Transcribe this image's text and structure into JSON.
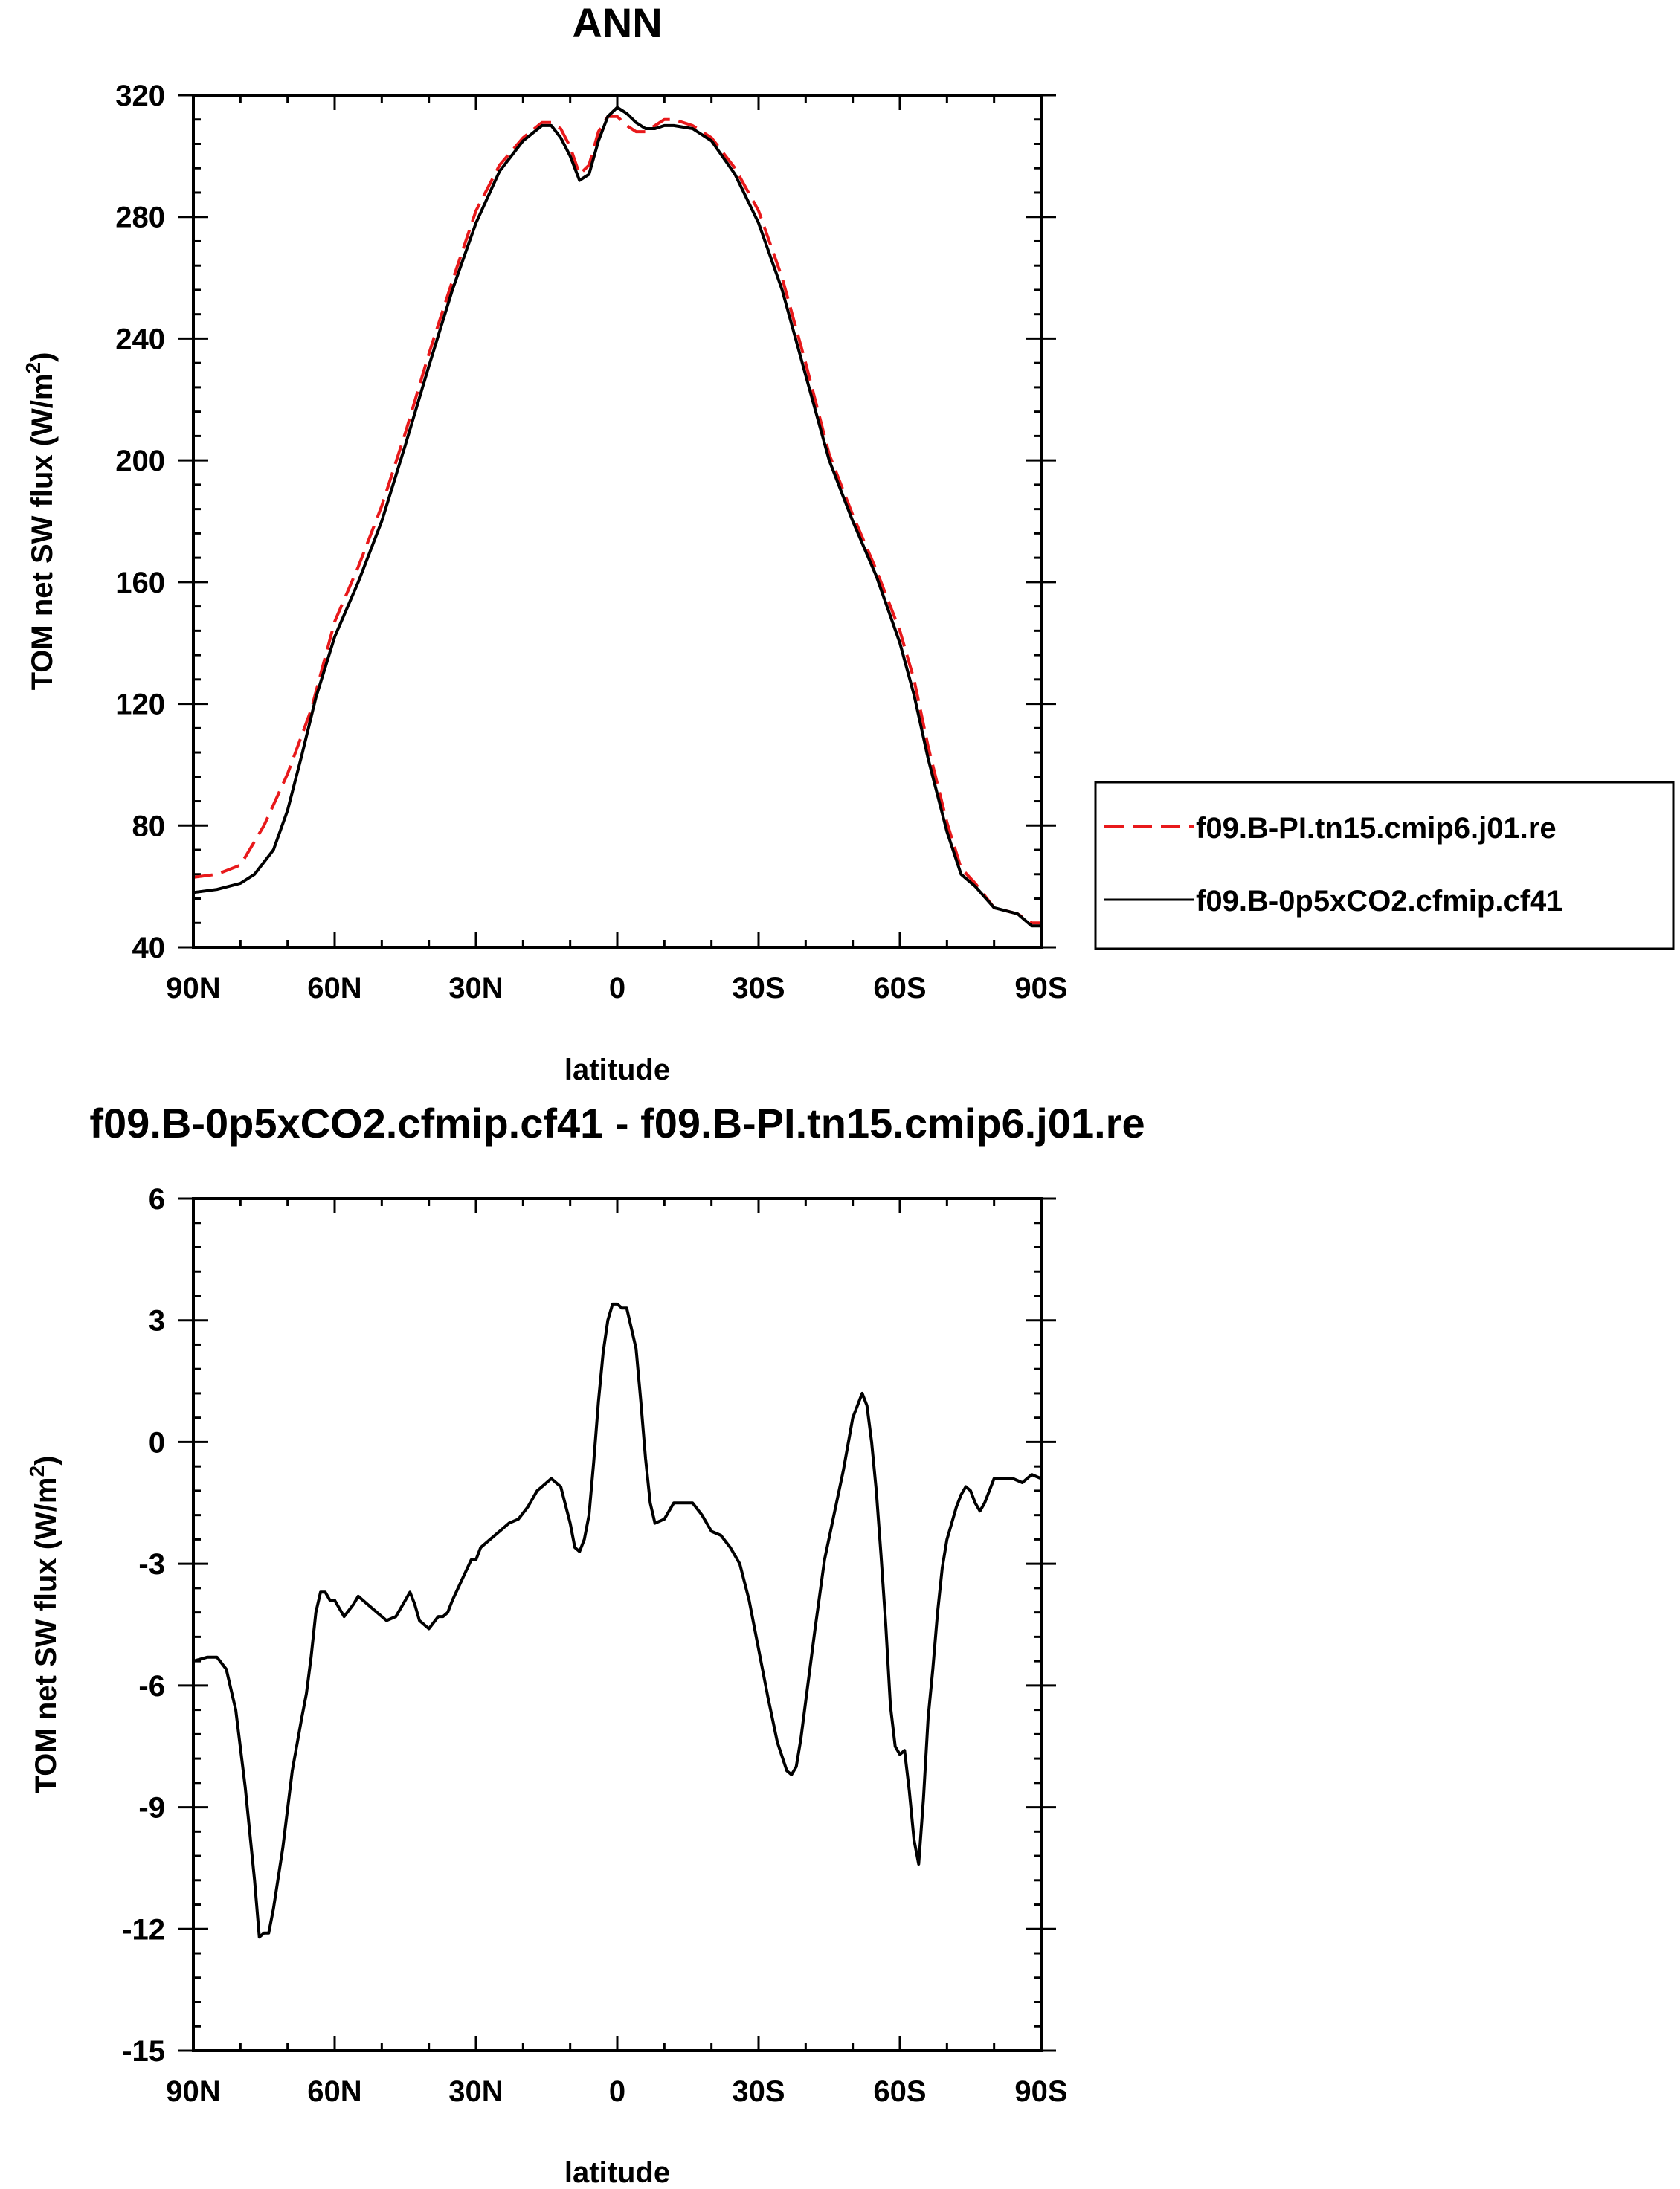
{
  "chart_data": [
    {
      "type": "line",
      "title": "ANN",
      "xlabel": "latitude",
      "ylabel": "TOM net SW flux (W/m",
      "ylabel_sup": "2",
      "ylabel_close": ")",
      "xlim": [
        90,
        -90
      ],
      "ylim": [
        40,
        320
      ],
      "xticks": [
        90,
        60,
        30,
        0,
        -30,
        -60,
        -90
      ],
      "xtick_labels": [
        "90N",
        "60N",
        "30N",
        "0",
        "30S",
        "60S",
        "90S"
      ],
      "yticks": [
        40,
        80,
        120,
        160,
        200,
        240,
        280,
        320
      ],
      "ytick_labels": [
        "40",
        "80",
        "120",
        "160",
        "200",
        "240",
        "280",
        "320"
      ],
      "grid": false,
      "legend_position": "right",
      "series": [
        {
          "name": "f09.B-PI.tn15.cmip6.j01.re",
          "color": "#e8191b",
          "dash": "dashed",
          "x": [
            90,
            85,
            80,
            75,
            70,
            65,
            60,
            55,
            50,
            45,
            40,
            35,
            30,
            25,
            20,
            16,
            14,
            12,
            10,
            8,
            6,
            4,
            2,
            0,
            -2,
            -4,
            -6,
            -8,
            -10,
            -12,
            -16,
            -20,
            -25,
            -30,
            -35,
            -40,
            -45,
            -50,
            -55,
            -60,
            -63,
            -66,
            -70,
            -73,
            -76,
            -80,
            -85,
            -88,
            -90
          ],
          "y": [
            63,
            64,
            67,
            80,
            97,
            118,
            147,
            165,
            185,
            209,
            235,
            259,
            282,
            297,
            306,
            311,
            311,
            309,
            303,
            294,
            297,
            308,
            313,
            313,
            310,
            308,
            308,
            310,
            312,
            312,
            310,
            306,
            296,
            282,
            260,
            232,
            202,
            182,
            164,
            144,
            128,
            106,
            81,
            66,
            61,
            53,
            51,
            48,
            48
          ]
        },
        {
          "name": "f09.B-0p5xCO2.cfmip.cf41",
          "color": "#000000",
          "dash": "solid",
          "x": [
            90,
            85,
            80,
            77,
            73,
            70,
            67,
            64,
            60,
            55,
            50,
            45,
            40,
            35,
            30,
            25,
            20,
            16,
            14,
            12,
            10,
            8,
            6,
            4,
            2,
            0,
            -2,
            -4,
            -6,
            -8,
            -10,
            -12,
            -16,
            -20,
            -25,
            -30,
            -35,
            -40,
            -45,
            -50,
            -55,
            -60,
            -63,
            -66,
            -70,
            -73,
            -76,
            -80,
            -85,
            -88,
            -90
          ],
          "y": [
            58,
            59,
            61,
            64,
            72,
            85,
            103,
            122,
            142,
            160,
            180,
            205,
            231,
            256,
            278,
            295,
            305,
            310,
            310,
            306,
            300,
            292,
            294,
            305,
            313,
            316,
            314,
            311,
            309,
            309,
            310,
            310,
            309,
            305,
            294,
            278,
            256,
            228,
            200,
            180,
            162,
            140,
            123,
            102,
            78,
            64,
            60,
            53,
            51,
            47,
            47
          ]
        }
      ]
    },
    {
      "type": "line",
      "title": "f09.B-0p5xCO2.cfmip.cf41 - f09.B-PI.tn15.cmip6.j01.re",
      "xlabel": "latitude",
      "ylabel": "TOM net SW flux (W/m",
      "ylabel_sup": "2",
      "ylabel_close": ")",
      "xlim": [
        90,
        -90
      ],
      "ylim": [
        -15,
        6
      ],
      "xticks": [
        90,
        60,
        30,
        0,
        -30,
        -60,
        -90
      ],
      "xtick_labels": [
        "90N",
        "60N",
        "30N",
        "0",
        "30S",
        "60S",
        "90S"
      ],
      "yticks": [
        -15,
        -12,
        -9,
        -6,
        -3,
        0,
        3,
        6
      ],
      "ytick_labels": [
        "-15",
        "-12",
        "-9",
        "-6",
        "-3",
        "0",
        "3",
        "6"
      ],
      "grid": false,
      "series": [
        {
          "color": "#000000",
          "dash": "solid",
          "x": [
            90,
            87,
            85,
            83,
            81,
            79,
            77,
            76,
            75,
            74,
            73,
            71,
            69,
            67,
            66,
            65,
            64,
            63,
            62,
            61,
            60,
            58,
            56,
            55,
            53,
            51,
            49,
            47,
            45,
            44,
            43,
            42,
            40,
            38,
            37,
            36,
            35,
            33,
            31,
            30,
            29,
            27,
            25,
            23,
            21,
            19,
            17,
            16,
            14,
            12,
            10,
            9,
            8,
            7,
            6,
            5,
            4,
            3,
            2,
            1,
            0,
            -1,
            -2,
            -3,
            -4,
            -5,
            -6,
            -7,
            -8,
            -10,
            -12,
            -14,
            -16,
            -18,
            -20,
            -22,
            -24,
            -26,
            -28,
            -30,
            -32,
            -34,
            -36,
            -37,
            -38,
            -39,
            -40,
            -42,
            -44,
            -46,
            -48,
            -50,
            -52,
            -53,
            -54,
            -55,
            -56,
            -57,
            -58,
            -59,
            -60,
            -61,
            -62,
            -63,
            -64,
            -65,
            -66,
            -67,
            -68,
            -69,
            -70,
            -71,
            -72,
            -73,
            -74,
            -75,
            -76,
            -77,
            -78,
            -80,
            -82,
            -84,
            -86,
            -88,
            -90
          ],
          "y": [
            -5.4,
            -5.3,
            -5.3,
            -5.6,
            -6.6,
            -8.5,
            -10.8,
            -12.2,
            -12.1,
            -12.1,
            -11.5,
            -10.0,
            -8.1,
            -6.8,
            -6.2,
            -5.3,
            -4.2,
            -3.7,
            -3.7,
            -3.9,
            -3.9,
            -4.3,
            -4.0,
            -3.8,
            -4.0,
            -4.2,
            -4.4,
            -4.3,
            -3.9,
            -3.7,
            -4.0,
            -4.4,
            -4.6,
            -4.3,
            -4.3,
            -4.2,
            -3.9,
            -3.4,
            -2.9,
            -2.9,
            -2.6,
            -2.4,
            -2.2,
            -2.0,
            -1.9,
            -1.6,
            -1.2,
            -1.1,
            -0.9,
            -1.1,
            -2.0,
            -2.6,
            -2.7,
            -2.4,
            -1.8,
            -0.5,
            1.0,
            2.2,
            3.0,
            3.4,
            3.4,
            3.3,
            3.3,
            2.8,
            2.3,
            1.0,
            -0.4,
            -1.5,
            -2.0,
            -1.9,
            -1.5,
            -1.5,
            -1.5,
            -1.8,
            -2.2,
            -2.3,
            -2.6,
            -3.0,
            -3.9,
            -5.1,
            -6.3,
            -7.4,
            -8.1,
            -8.2,
            -8.0,
            -7.3,
            -6.4,
            -4.6,
            -2.9,
            -1.8,
            -0.7,
            0.6,
            1.2,
            0.9,
            0.0,
            -1.2,
            -2.8,
            -4.5,
            -6.5,
            -7.5,
            -7.7,
            -7.6,
            -8.6,
            -9.8,
            -10.4,
            -8.8,
            -6.8,
            -5.6,
            -4.2,
            -3.1,
            -2.4,
            -2.0,
            -1.6,
            -1.3,
            -1.1,
            -1.2,
            -1.5,
            -1.7,
            -1.5,
            -0.9,
            -0.9,
            -0.9,
            -1.0,
            -0.8,
            -0.9
          ]
        }
      ]
    }
  ]
}
